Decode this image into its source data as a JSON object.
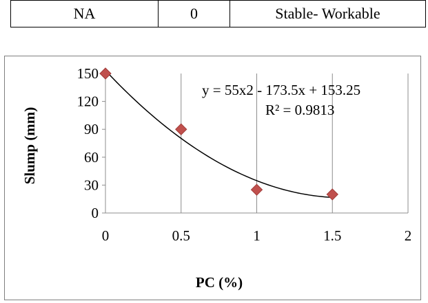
{
  "table": {
    "row": [
      "NA",
      "0",
      "Stable- Workable"
    ]
  },
  "chart_data": {
    "type": "scatter",
    "title": "",
    "xlabel": "PC (%)",
    "ylabel": "Slump (mm)",
    "xlim": [
      0,
      2
    ],
    "ylim": [
      0,
      150
    ],
    "x_ticks": [
      "0",
      "0.5",
      "1",
      "1.5",
      "2"
    ],
    "y_ticks": [
      "0",
      "30",
      "60",
      "90",
      "120",
      "150"
    ],
    "grid": "vertical",
    "legend": "none",
    "series": [
      {
        "x": [
          0,
          0.5,
          1,
          1.5
        ],
        "y": [
          150,
          90,
          25,
          20
        ],
        "marker": "diamond",
        "color": "#c0504d"
      }
    ],
    "trendline": {
      "type": "polynomial",
      "order": 2,
      "coefficients": [
        55,
        -173.5,
        153.25
      ],
      "color": "#000000"
    },
    "annotations": [
      "y = 55x2 - 173.5x + 153.25",
      "R² = 0.9813"
    ]
  }
}
